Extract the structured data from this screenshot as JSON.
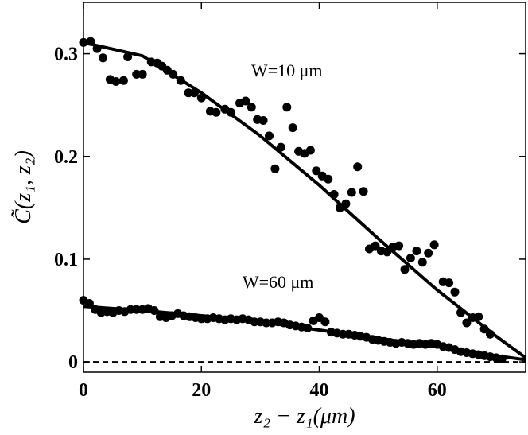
{
  "chart_data": {
    "type": "scatter",
    "xlabel": "z₂ − z₁(μm)",
    "ylabel": "C̃(z₁, z₂)",
    "xlim": [
      0,
      75
    ],
    "ylim": [
      -0.01,
      0.35
    ],
    "x_ticks": [
      0,
      20,
      40,
      60
    ],
    "x_tick_labels": [
      "0",
      "20",
      "40",
      "60"
    ],
    "y_ticks": [
      0,
      0.1,
      0.2,
      0.3
    ],
    "y_tick_labels": [
      "0",
      "0.1",
      "0.2",
      "0.3"
    ],
    "grid": false,
    "zero_line": {
      "y": 0,
      "style": "dashed"
    },
    "annotations": [
      {
        "text": "W=10 μm",
        "x": 34.5,
        "y": 0.278
      },
      {
        "text": "W=60 μm",
        "x": 33,
        "y": 0.072
      }
    ],
    "series": [
      {
        "name": "W=10 μm",
        "points": [
          [
            0,
            0.311
          ],
          [
            1.2,
            0.312
          ],
          [
            2.3,
            0.305
          ],
          [
            3.3,
            0.296
          ],
          [
            4.5,
            0.275
          ],
          [
            5.5,
            0.273
          ],
          [
            6.8,
            0.274
          ],
          [
            7.5,
            0.297
          ],
          [
            9,
            0.28
          ],
          [
            10,
            0.28
          ],
          [
            11.5,
            0.292
          ],
          [
            12.5,
            0.291
          ],
          [
            13.3,
            0.288
          ],
          [
            14.2,
            0.284
          ],
          [
            15.2,
            0.28
          ],
          [
            16.5,
            0.274
          ],
          [
            17.8,
            0.262
          ],
          [
            18.8,
            0.262
          ],
          [
            20,
            0.257
          ],
          [
            21.5,
            0.244
          ],
          [
            22.5,
            0.243
          ],
          [
            24,
            0.246
          ],
          [
            25,
            0.243
          ],
          [
            26.5,
            0.252
          ],
          [
            27.5,
            0.254
          ],
          [
            28.5,
            0.248
          ],
          [
            29.5,
            0.236
          ],
          [
            30.5,
            0.235
          ],
          [
            31.5,
            0.22
          ],
          [
            32.5,
            0.188
          ],
          [
            33.5,
            0.209
          ],
          [
            34.5,
            0.248
          ],
          [
            35.5,
            0.228
          ],
          [
            36.5,
            0.205
          ],
          [
            37.5,
            0.203
          ],
          [
            38.5,
            0.206
          ],
          [
            39.5,
            0.186
          ],
          [
            40.5,
            0.181
          ],
          [
            41.5,
            0.178
          ],
          [
            42.5,
            0.163
          ],
          [
            43.5,
            0.15
          ],
          [
            44.5,
            0.154
          ],
          [
            45.5,
            0.165
          ],
          [
            46.5,
            0.19
          ],
          [
            47.5,
            0.166
          ],
          [
            48.5,
            0.11
          ],
          [
            49.5,
            0.113
          ],
          [
            50.5,
            0.108
          ],
          [
            51.5,
            0.107
          ],
          [
            52.5,
            0.112
          ],
          [
            53.5,
            0.113
          ],
          [
            54.5,
            0.09
          ],
          [
            55.5,
            0.101
          ],
          [
            56.5,
            0.108
          ],
          [
            57.5,
            0.097
          ],
          [
            58.5,
            0.106
          ],
          [
            59.5,
            0.114
          ],
          [
            61,
            0.078
          ],
          [
            62,
            0.077
          ],
          [
            63,
            0.068
          ],
          [
            64,
            0.048
          ],
          [
            65,
            0.038
          ],
          [
            66,
            0.043
          ],
          [
            67,
            0.044
          ],
          [
            68,
            0.032
          ],
          [
            69,
            0.027
          ]
        ],
        "fit": [
          [
            0,
            0.311
          ],
          [
            10,
            0.298
          ],
          [
            20,
            0.262
          ],
          [
            30,
            0.22
          ],
          [
            40,
            0.172
          ],
          [
            50,
            0.12
          ],
          [
            60,
            0.07
          ],
          [
            70,
            0.025
          ],
          [
            75,
            0.004
          ]
        ]
      },
      {
        "name": "W=60 μm",
        "points": [
          [
            0,
            0.06
          ],
          [
            1,
            0.057
          ],
          [
            2,
            0.051
          ],
          [
            3,
            0.048
          ],
          [
            4,
            0.049
          ],
          [
            5,
            0.048
          ],
          [
            6,
            0.05
          ],
          [
            7,
            0.049
          ],
          [
            8,
            0.051
          ],
          [
            9,
            0.051
          ],
          [
            10,
            0.051
          ],
          [
            11,
            0.052
          ],
          [
            12,
            0.05
          ],
          [
            13,
            0.044
          ],
          [
            14,
            0.043
          ],
          [
            15,
            0.045
          ],
          [
            16,
            0.047
          ],
          [
            17,
            0.045
          ],
          [
            18,
            0.044
          ],
          [
            19,
            0.043
          ],
          [
            20,
            0.042
          ],
          [
            21,
            0.042
          ],
          [
            22,
            0.043
          ],
          [
            23,
            0.042
          ],
          [
            24,
            0.041
          ],
          [
            25,
            0.042
          ],
          [
            26,
            0.041
          ],
          [
            27,
            0.042
          ],
          [
            28,
            0.041
          ],
          [
            29,
            0.039
          ],
          [
            30,
            0.039
          ],
          [
            31,
            0.038
          ],
          [
            32,
            0.038
          ],
          [
            33,
            0.039
          ],
          [
            34,
            0.038
          ],
          [
            35,
            0.036
          ],
          [
            36,
            0.035
          ],
          [
            37,
            0.034
          ],
          [
            38,
            0.033
          ],
          [
            39,
            0.04
          ],
          [
            40,
            0.043
          ],
          [
            41,
            0.039
          ],
          [
            42,
            0.029
          ],
          [
            43,
            0.028
          ],
          [
            44,
            0.027
          ],
          [
            45,
            0.027
          ],
          [
            46,
            0.026
          ],
          [
            47,
            0.025
          ],
          [
            48,
            0.024
          ],
          [
            49,
            0.022
          ],
          [
            50,
            0.021
          ],
          [
            51,
            0.02
          ],
          [
            52,
            0.019
          ],
          [
            53,
            0.018
          ],
          [
            54,
            0.019
          ],
          [
            55,
            0.018
          ],
          [
            56,
            0.017
          ],
          [
            57,
            0.018
          ],
          [
            58,
            0.017
          ],
          [
            59,
            0.018
          ],
          [
            60,
            0.017
          ],
          [
            61,
            0.015
          ],
          [
            62,
            0.014
          ],
          [
            63,
            0.012
          ],
          [
            64,
            0.01
          ],
          [
            65,
            0.009
          ],
          [
            66,
            0.008
          ],
          [
            67,
            0.007
          ],
          [
            68,
            0.006
          ],
          [
            69,
            0.005
          ],
          [
            70,
            0.004
          ],
          [
            71,
            0.003
          ]
        ],
        "fit": [
          [
            0,
            0.054
          ],
          [
            10,
            0.05
          ],
          [
            20,
            0.045
          ],
          [
            30,
            0.039
          ],
          [
            40,
            0.031
          ],
          [
            50,
            0.023
          ],
          [
            60,
            0.015
          ],
          [
            70,
            0.006
          ],
          [
            75,
            0.002
          ]
        ]
      }
    ]
  }
}
